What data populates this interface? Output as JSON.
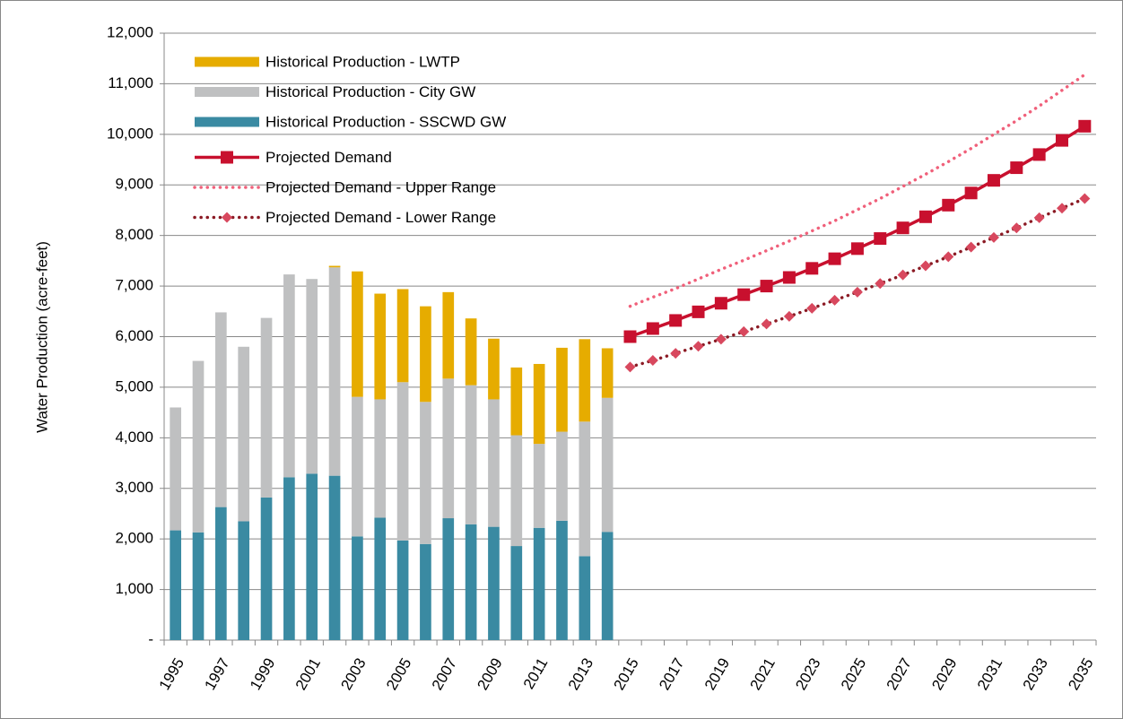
{
  "chart_data": {
    "type": "combo",
    "y_label": "Water Production (acre-feet)",
    "categories": [
      "1995",
      null,
      "1997",
      null,
      "1999",
      null,
      "2001",
      null,
      "2003",
      null,
      "2005",
      null,
      "2007",
      null,
      "2009",
      null,
      "2011",
      null,
      "2013",
      null,
      "2015",
      null,
      "2017",
      null,
      "2019",
      null,
      "2021",
      null,
      "2023",
      null,
      "2025",
      null,
      "2027",
      null,
      "2029",
      null,
      "2031",
      null,
      "2033",
      null,
      "2035"
    ],
    "ylim": [
      0,
      12000
    ],
    "yticks": [
      {
        "value": 0,
        "label": "-"
      },
      {
        "value": 1000,
        "label": "1,000"
      },
      {
        "value": 2000,
        "label": "2,000"
      },
      {
        "value": 3000,
        "label": "3,000"
      },
      {
        "value": 4000,
        "label": "4,000"
      },
      {
        "value": 5000,
        "label": "5,000"
      },
      {
        "value": 6000,
        "label": "6,000"
      },
      {
        "value": 7000,
        "label": "7,000"
      },
      {
        "value": 8000,
        "label": "8,000"
      },
      {
        "value": 9000,
        "label": "9,000"
      },
      {
        "value": 10000,
        "label": "10,000"
      },
      {
        "value": 11000,
        "label": "11,000"
      },
      {
        "value": 12000,
        "label": "12,000"
      }
    ],
    "grid": true,
    "legend": "upper left",
    "series": [
      {
        "name": "Historical Production - LWTP",
        "type": "bar",
        "color": "#e6ac00",
        "values": [
          null,
          null,
          null,
          null,
          null,
          null,
          null,
          30,
          2480,
          2090,
          1840,
          1890,
          1710,
          1320,
          1200,
          1340,
          1580,
          1660,
          1630,
          980,
          null,
          null,
          null,
          null,
          null,
          null,
          null,
          null,
          null,
          null,
          null,
          null,
          null,
          null,
          null,
          null,
          null,
          null,
          null,
          null,
          null
        ]
      },
      {
        "name": "Historical Production - City GW",
        "type": "bar",
        "color": "#bfc0c1",
        "values": [
          2430,
          3390,
          3850,
          3450,
          3550,
          4010,
          3850,
          4120,
          2760,
          2340,
          3130,
          2810,
          2760,
          2750,
          2520,
          2190,
          1660,
          1760,
          2660,
          2650,
          null,
          null,
          null,
          null,
          null,
          null,
          null,
          null,
          null,
          null,
          null,
          null,
          null,
          null,
          null,
          null,
          null,
          null,
          null,
          null,
          null
        ]
      },
      {
        "name": "Historical Production - SSCWD GW",
        "type": "bar",
        "color": "#3a8aa2",
        "values": [
          2170,
          2130,
          2630,
          2350,
          2820,
          3220,
          3290,
          3250,
          2050,
          2420,
          1970,
          1900,
          2410,
          2290,
          2240,
          1860,
          2220,
          2360,
          1660,
          2140,
          null,
          null,
          null,
          null,
          null,
          null,
          null,
          null,
          null,
          null,
          null,
          null,
          null,
          null,
          null,
          null,
          null,
          null,
          null,
          null,
          null
        ]
      },
      {
        "name": "Projected Demand",
        "type": "line",
        "color": "#c8102e",
        "style": "solid",
        "marker": "square",
        "values": [
          null,
          null,
          null,
          null,
          null,
          null,
          null,
          null,
          null,
          null,
          null,
          null,
          null,
          null,
          null,
          null,
          null,
          null,
          null,
          null,
          6000,
          6160,
          6320,
          6490,
          6660,
          6830,
          7000,
          7170,
          7350,
          7540,
          7740,
          7940,
          8150,
          8370,
          8600,
          8840,
          9090,
          9340,
          9600,
          9880,
          10160
        ]
      },
      {
        "name": "Projected Demand - Upper Range",
        "type": "line",
        "color": "#f0607a",
        "style": "dotted",
        "marker": "none",
        "values": [
          null,
          null,
          null,
          null,
          null,
          null,
          null,
          null,
          null,
          null,
          null,
          null,
          null,
          null,
          null,
          null,
          null,
          null,
          null,
          null,
          6600,
          6780,
          6950,
          7140,
          7330,
          7510,
          7700,
          7890,
          8090,
          8290,
          8510,
          8730,
          8970,
          9210,
          9460,
          9720,
          10000,
          10270,
          10560,
          10870,
          11180
        ]
      },
      {
        "name": "Projected Demand - Lower Range",
        "type": "line",
        "color": "#8b1a24",
        "marker_color": "#d8485e",
        "style": "dotted",
        "marker": "diamond",
        "values": [
          null,
          null,
          null,
          null,
          null,
          null,
          null,
          null,
          null,
          null,
          null,
          null,
          null,
          null,
          null,
          null,
          null,
          null,
          null,
          null,
          5400,
          5530,
          5670,
          5810,
          5950,
          6100,
          6250,
          6400,
          6560,
          6720,
          6880,
          7050,
          7220,
          7400,
          7580,
          7770,
          7960,
          8150,
          8350,
          8540,
          8730
        ]
      }
    ]
  }
}
